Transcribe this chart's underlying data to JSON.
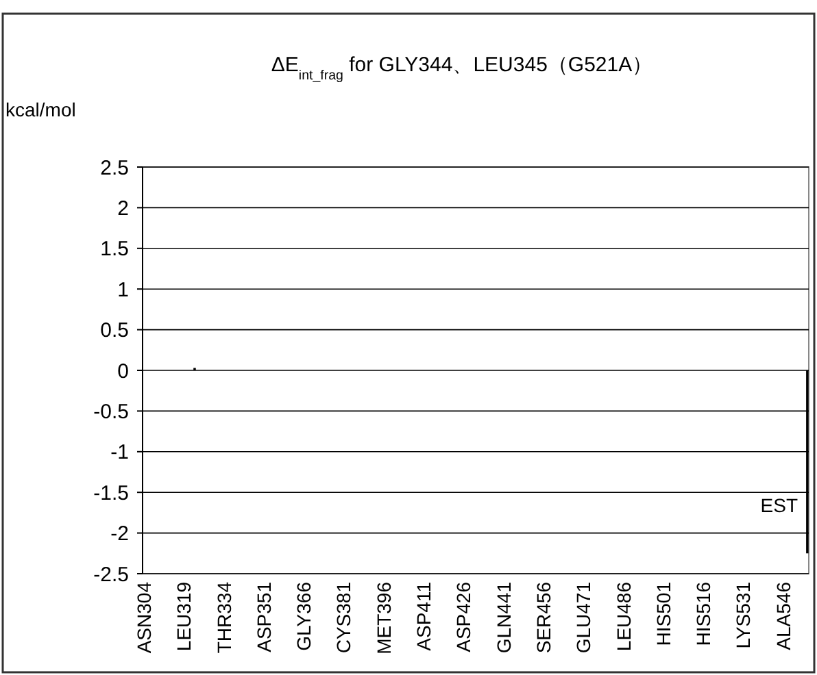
{
  "chart_data": {
    "type": "bar",
    "title": "ΔE$_{int_frag}$ for GLY344、LEU345（G521A）",
    "ylabel": "kcal/mol",
    "categories": [
      "ASN304",
      null,
      null,
      null,
      null,
      null,
      null,
      null,
      null,
      null,
      null,
      null,
      null,
      null,
      null,
      "LEU319",
      null,
      null,
      null,
      null,
      null,
      null,
      null,
      null,
      null,
      null,
      null,
      null,
      null,
      null,
      "THR334",
      null,
      null,
      null,
      null,
      null,
      null,
      null,
      null,
      null,
      null,
      null,
      null,
      null,
      null,
      "ASP351",
      null,
      null,
      null,
      null,
      null,
      null,
      null,
      null,
      null,
      null,
      null,
      null,
      null,
      null,
      "GLY366",
      null,
      null,
      null,
      null,
      null,
      null,
      null,
      null,
      null,
      null,
      null,
      null,
      null,
      null,
      "CYS381",
      null,
      null,
      null,
      null,
      null,
      null,
      null,
      null,
      null,
      null,
      null,
      null,
      null,
      null,
      "MET396",
      null,
      null,
      null,
      null,
      null,
      null,
      null,
      null,
      null,
      null,
      null,
      null,
      null,
      null,
      "ASP411",
      null,
      null,
      null,
      null,
      null,
      null,
      null,
      null,
      null,
      null,
      null,
      null,
      null,
      null,
      "ASP426",
      null,
      null,
      null,
      null,
      null,
      null,
      null,
      null,
      null,
      null,
      null,
      null,
      null,
      null,
      "GLN441",
      null,
      null,
      null,
      null,
      null,
      null,
      null,
      null,
      null,
      null,
      null,
      null,
      null,
      null,
      "SER456",
      null,
      null,
      null,
      null,
      null,
      null,
      null,
      null,
      null,
      null,
      null,
      null,
      null,
      null,
      "GLU471",
      null,
      null,
      null,
      null,
      null,
      null,
      null,
      null,
      null,
      null,
      null,
      null,
      null,
      null,
      "LEU486",
      null,
      null,
      null,
      null,
      null,
      null,
      null,
      null,
      null,
      null,
      null,
      null,
      null,
      null,
      "HIS501",
      null,
      null,
      null,
      null,
      null,
      null,
      null,
      null,
      null,
      null,
      null,
      null,
      null,
      null,
      "HIS516",
      null,
      null,
      null,
      null,
      null,
      null,
      null,
      null,
      null,
      null,
      null,
      null,
      null,
      null,
      "LYS531",
      null,
      null,
      null,
      null,
      null,
      null,
      null,
      null,
      null,
      null,
      null,
      null,
      null,
      null,
      "ALA546",
      null,
      null,
      null,
      null,
      null,
      null,
      null,
      null,
      null
    ],
    "values": [
      0,
      0,
      0,
      0,
      0,
      0,
      0,
      0,
      0,
      0,
      0,
      0,
      0,
      0,
      0,
      0,
      0,
      0,
      0,
      0.03,
      0,
      0,
      0,
      0,
      0,
      0,
      0,
      0,
      0,
      0,
      0,
      0,
      0,
      0,
      0,
      0,
      0,
      0,
      0,
      0,
      0,
      0,
      0,
      0,
      0,
      0,
      0,
      0,
      0,
      0,
      0,
      0,
      0,
      0,
      0,
      0,
      0,
      0,
      0,
      0,
      0,
      0,
      0,
      0,
      0,
      0,
      0,
      0,
      0,
      0,
      0,
      0,
      0,
      0,
      0,
      0,
      0,
      0,
      0,
      0,
      0,
      0,
      0,
      0,
      0,
      0,
      0,
      0,
      0,
      0,
      0,
      0,
      0,
      0,
      0,
      0,
      0,
      0,
      0,
      0,
      0,
      0,
      0,
      0,
      0,
      0,
      0,
      0,
      0,
      0,
      0,
      0,
      0,
      0,
      0,
      0,
      0,
      0,
      0,
      0,
      0,
      0,
      0,
      0,
      0,
      0,
      0,
      0,
      0,
      0,
      0,
      0,
      0,
      0,
      0,
      0,
      0,
      0,
      0,
      0,
      0,
      0,
      0,
      0,
      0,
      0,
      0,
      0,
      0,
      0,
      0,
      0,
      0,
      0,
      0,
      0,
      0,
      0,
      0,
      0,
      0,
      0,
      0,
      0,
      0,
      0,
      0,
      0,
      0,
      0,
      0,
      0,
      0,
      0,
      0,
      0,
      0,
      0,
      0,
      0,
      0,
      0,
      0,
      0,
      0,
      0,
      0,
      0,
      0,
      0,
      0,
      0,
      0,
      0,
      0,
      0,
      0,
      0,
      0,
      0,
      0,
      0,
      0,
      0,
      0,
      0,
      0,
      0,
      0,
      0,
      0,
      0,
      0,
      0,
      0,
      0,
      0,
      0,
      0,
      0,
      0,
      0,
      0,
      0,
      0,
      0,
      0,
      0,
      0,
      0,
      0,
      0,
      0,
      0,
      0,
      0,
      0,
      0,
      0,
      0,
      0,
      0,
      0,
      0,
      0,
      0,
      0,
      0,
      0,
      -2.25
    ],
    "color": "#000000",
    "ylim": [
      -2.5,
      2.5
    ],
    "yticks": [
      -2.5,
      -2,
      -1.5,
      -1,
      -0.5,
      0,
      0.5,
      1,
      1.5,
      2,
      2.5
    ],
    "grid": "y",
    "annotations": [
      "EST"
    ]
  }
}
